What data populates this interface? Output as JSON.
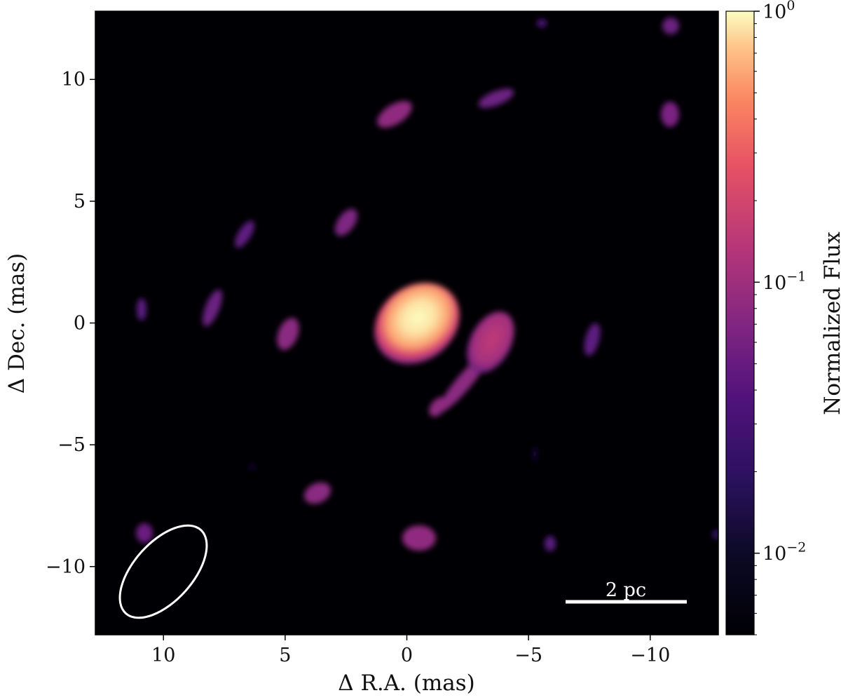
{
  "chart_data": {
    "type": "heatmap",
    "title": "",
    "xlabel": "Δ R.A. (mas)",
    "ylabel": "Δ Dec. (mas)",
    "xlim": [
      12.8,
      -12.8
    ],
    "ylim": [
      -12.8,
      12.8
    ],
    "xticks": [
      10,
      5,
      0,
      -5,
      -10
    ],
    "yticks": [
      -10,
      -5,
      0,
      5,
      10
    ],
    "xtick_labels": [
      "10",
      "5",
      "0",
      "−5",
      "−10"
    ],
    "ytick_labels": [
      "−10",
      "−5",
      "0",
      "5",
      "10"
    ],
    "grid": false,
    "colormap": "magma",
    "colorbar": {
      "label": "Normalized Flux",
      "scale": "log",
      "range": [
        0.005,
        1.0
      ],
      "ticks": [
        {
          "value": 1.0,
          "base": "10",
          "exp": "0"
        },
        {
          "value": 0.1,
          "base": "10",
          "exp": "−1"
        },
        {
          "value": 0.01,
          "base": "10",
          "exp": "−2"
        }
      ]
    },
    "components": [
      {
        "x": 0.0,
        "y": 0.2,
        "flux": 1.0
      },
      {
        "x": 0.4,
        "y": 0.6,
        "flux": 0.5
      },
      {
        "x": -3.5,
        "y": -0.2,
        "flux": 0.09
      },
      {
        "x": -2.8,
        "y": -1.4,
        "flux": 0.07
      },
      {
        "x": -2.1,
        "y": -2.5,
        "flux": 0.055
      },
      {
        "x": -1.5,
        "y": -3.2,
        "flux": 0.04
      },
      {
        "x": 0.5,
        "y": 8.6,
        "flux": 0.04
      },
      {
        "x": -3.7,
        "y": 9.2,
        "flux": 0.03
      },
      {
        "x": -11.1,
        "y": 8.4,
        "flux": 0.04
      },
      {
        "x": -11.1,
        "y": 12.6,
        "flux": 0.028
      },
      {
        "x": 2.5,
        "y": 4.1,
        "flux": 0.035
      },
      {
        "x": 6.7,
        "y": 3.5,
        "flux": 0.025
      },
      {
        "x": 8.2,
        "y": 0.4,
        "flux": 0.03
      },
      {
        "x": 4.9,
        "y": -0.5,
        "flux": 0.04
      },
      {
        "x": 11.3,
        "y": 0.6,
        "flux": 0.022
      },
      {
        "x": -7.7,
        "y": -0.7,
        "flux": 0.025
      },
      {
        "x": 3.6,
        "y": -9.7,
        "flux": 0.04
      },
      {
        "x": -0.6,
        "y": -9.1,
        "flux": 0.045
      },
      {
        "x": -6.0,
        "y": -9.3,
        "flux": 0.02
      },
      {
        "x": 11.0,
        "y": -8.7,
        "flux": 0.022
      },
      {
        "x": -5.6,
        "y": 12.5,
        "flux": 0.015
      }
    ],
    "beam": {
      "x": 9.8,
      "y": -10.1,
      "major_mas": 5.4,
      "minor_mas": 2.6,
      "pa_deg": 41
    },
    "scale_bar": {
      "label": "2 pc",
      "x_start": -6.5,
      "x_end": -11.5,
      "y": -11.5
    }
  }
}
